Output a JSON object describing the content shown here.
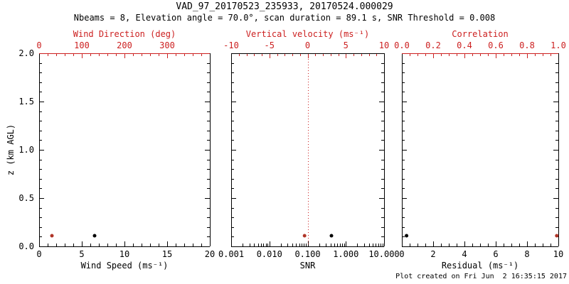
{
  "header": {
    "title": "VAD_97_20170523_235933, 20170524.000029",
    "subtitle": "Nbeams = 8, Elevation angle = 70.0°, scan duration = 89.1 s, SNR Threshold = 0.008"
  },
  "footer": {
    "created": "Plot created on Fri Jun  2 16:35:15 2017"
  },
  "colors": {
    "axis_red": "#cc2020",
    "dot_red": "#b03528",
    "black": "#000000",
    "background": "#ffffff"
  },
  "chart_data": [
    {
      "type": "scatter",
      "name": "wind",
      "y_axis": {
        "label": "z (km AGL)",
        "range": [
          0,
          2
        ],
        "tick_values": [
          0,
          0.5,
          1,
          1.5,
          2
        ],
        "tick_labels": [
          "0.0",
          "0.5",
          "1.0",
          "1.5",
          "2.0"
        ],
        "minor_step": 0.1,
        "show_labels": true
      },
      "x_bottom": {
        "label": "Wind Speed (ms⁻¹)",
        "scale": "linear",
        "range": [
          0,
          20
        ],
        "tick_values": [
          0,
          5,
          10,
          15,
          20
        ],
        "tick_labels": [
          "0",
          "5",
          "10",
          "15",
          "20"
        ],
        "minor_step": 1,
        "color": "black"
      },
      "x_top": {
        "label": "Wind Direction (deg)",
        "scale": "linear",
        "range": [
          0,
          400
        ],
        "tick_values": [
          0,
          100,
          200,
          300
        ],
        "tick_labels": [
          "0",
          "100",
          "200",
          "300"
        ],
        "minor_step": 20,
        "color": "red",
        "border_red": true
      },
      "series": [
        {
          "name": "wind-speed",
          "axis": "bottom",
          "color": "black",
          "points": [
            {
              "x": 6.5,
              "z": 0.11
            }
          ]
        },
        {
          "name": "wind-direction",
          "axis": "top",
          "color": "red",
          "points": [
            {
              "x": 30,
              "z": 0.11
            }
          ]
        }
      ]
    },
    {
      "type": "scatter",
      "name": "snr",
      "y_axis": {
        "label": "",
        "range": [
          0,
          2
        ],
        "tick_values": [
          0,
          0.5,
          1,
          1.5,
          2
        ],
        "tick_labels": [],
        "minor_step": 0.1,
        "show_labels": false
      },
      "x_bottom": {
        "label": "SNR",
        "scale": "log",
        "range": [
          0.001,
          10
        ],
        "tick_values": [
          0.001,
          0.01,
          0.1,
          1,
          10
        ],
        "tick_labels": [
          "0.001",
          "0.010",
          "0.100",
          "1.000",
          "10.000"
        ],
        "color": "black"
      },
      "x_top": {
        "label": "Vertical velocity (ms⁻¹)",
        "scale": "linear",
        "range": [
          -10,
          10
        ],
        "tick_values": [
          -10,
          -5,
          0,
          5,
          10
        ],
        "tick_labels": [
          "-10",
          "-5",
          "0",
          "5",
          "10"
        ],
        "minor_step": 1,
        "color": "red",
        "border_red": false
      },
      "reference_line": {
        "axis": "top",
        "value": 0,
        "style": "dotted",
        "color": "red"
      },
      "series": [
        {
          "name": "snr",
          "axis": "bottom",
          "color": "black",
          "points": [
            {
              "x": 0.42,
              "z": 0.11
            }
          ]
        },
        {
          "name": "vertical-velocity",
          "axis": "top",
          "color": "red",
          "points": [
            {
              "x": -0.4,
              "z": 0.11
            }
          ]
        }
      ]
    },
    {
      "type": "scatter",
      "name": "residual",
      "y_axis": {
        "label": "",
        "range": [
          0,
          2
        ],
        "tick_values": [
          0,
          0.5,
          1,
          1.5,
          2
        ],
        "tick_labels": [],
        "minor_step": 0.1,
        "show_labels": false
      },
      "x_bottom": {
        "label": "Residual (ms⁻¹)",
        "scale": "linear",
        "range": [
          0,
          10
        ],
        "tick_values": [
          0,
          2,
          4,
          6,
          8,
          10
        ],
        "tick_labels": [
          "0",
          "2",
          "4",
          "6",
          "8",
          "10"
        ],
        "minor_step": 0.5,
        "color": "black"
      },
      "x_top": {
        "label": "Correlation",
        "scale": "linear",
        "range": [
          0,
          1
        ],
        "tick_values": [
          0,
          0.2,
          0.4,
          0.6,
          0.8,
          1
        ],
        "tick_labels": [
          "0.0",
          "0.2",
          "0.4",
          "0.6",
          "0.8",
          "1.0"
        ],
        "minor_step": 0.05,
        "color": "red",
        "border_red": true
      },
      "series": [
        {
          "name": "residual",
          "axis": "bottom",
          "color": "black",
          "points": [
            {
              "x": 0.3,
              "z": 0.11
            }
          ]
        },
        {
          "name": "correlation",
          "axis": "top",
          "color": "red",
          "points": [
            {
              "x": 0.99,
              "z": 0.11
            }
          ]
        }
      ]
    }
  ]
}
